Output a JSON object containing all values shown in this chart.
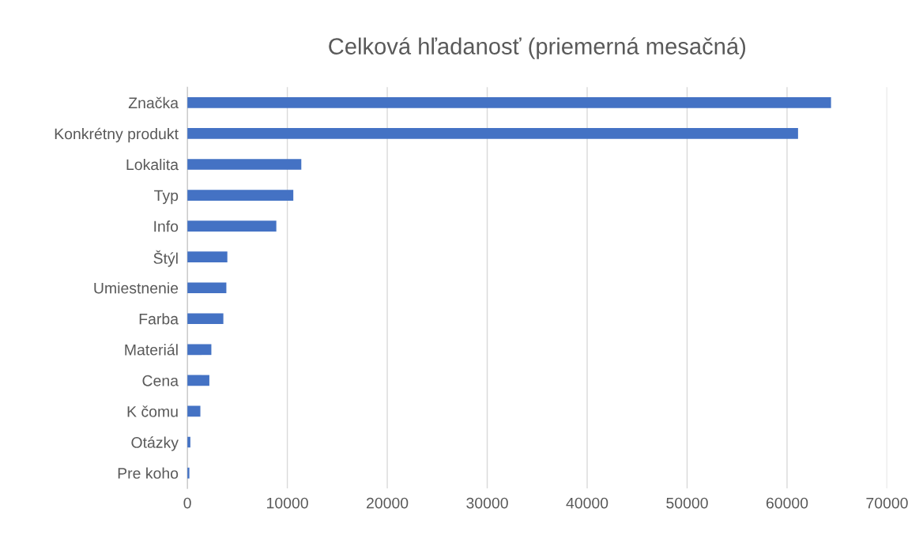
{
  "chart_data": {
    "type": "bar",
    "orientation": "horizontal",
    "title": "Celková hľadanosť (priemerná mesačná)",
    "categories": [
      "Značka",
      "Konkrétny produkt",
      "Lokalita",
      "Typ",
      "Info",
      "Štýl",
      "Umiestnenie",
      "Farba",
      "Materiál",
      "Cena",
      "K čomu",
      "Otázky",
      "Pre koho"
    ],
    "values": [
      64400,
      61100,
      11400,
      10600,
      8900,
      4000,
      3900,
      3600,
      2400,
      2200,
      1300,
      300,
      200
    ],
    "color": "#4472c4",
    "xlim": [
      0,
      70000
    ],
    "xticks": [
      0,
      10000,
      20000,
      30000,
      40000,
      50000,
      60000,
      70000
    ],
    "grid": "x"
  }
}
